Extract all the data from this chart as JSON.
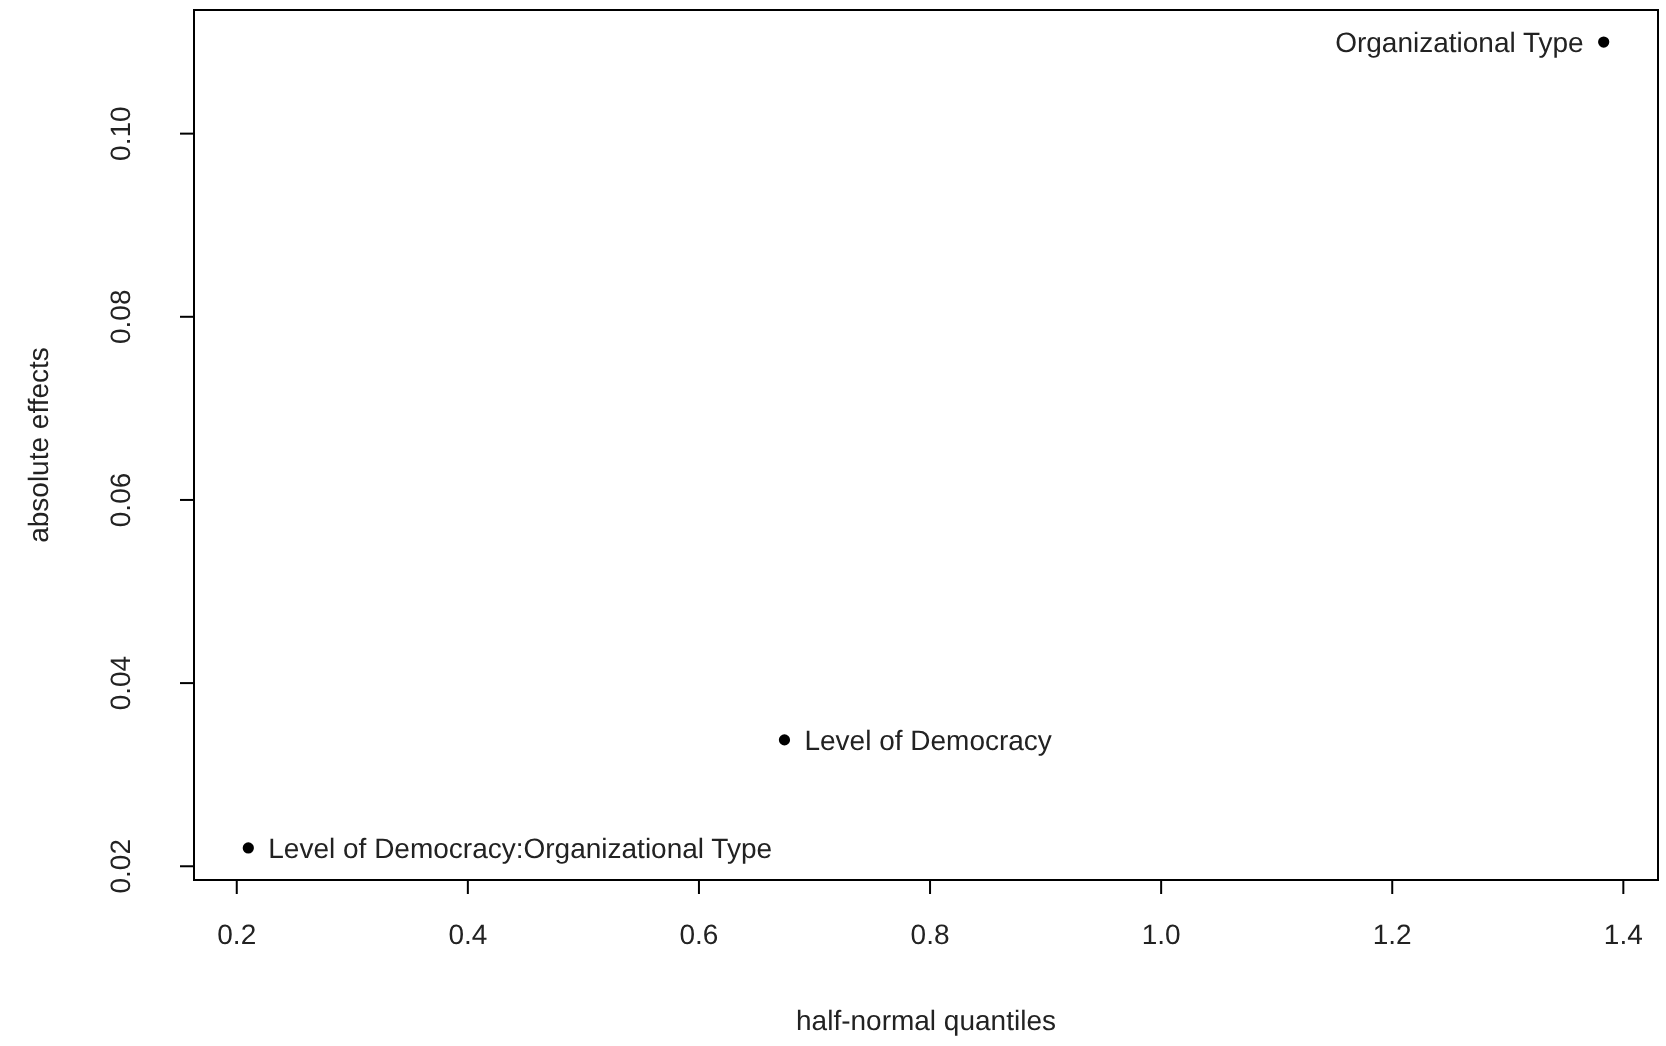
{
  "chart_data": {
    "type": "scatter",
    "xlabel": "half-normal quantiles",
    "ylabel": "absolute effects",
    "x": [
      0.21,
      0.674,
      1.383
    ],
    "values": [
      0.022,
      0.0338,
      0.11
    ],
    "color": "#000000",
    "marker": "circle",
    "xlim": [
      0.163,
      1.43
    ],
    "ylim": [
      0.0185,
      0.1135
    ],
    "xticks": [
      0.2,
      0.4,
      0.6,
      0.8,
      {
        "value": 1,
        "label": "1.0"
      },
      1.2,
      1.4
    ],
    "yticks": [
      0.02,
      0.04,
      0.06,
      0.08,
      {
        "value": 0.1,
        "label": "0.10"
      }
    ],
    "grid": false,
    "annotations": [
      {
        "text": "Level of Democracy:Organizational Type",
        "x": 0.21,
        "y": 0.022
      },
      {
        "text": "Level of Democracy",
        "x": 0.674,
        "y": 0.0338
      },
      {
        "text": "Organizational Type",
        "x": 1.383,
        "y": 0.11
      }
    ]
  }
}
